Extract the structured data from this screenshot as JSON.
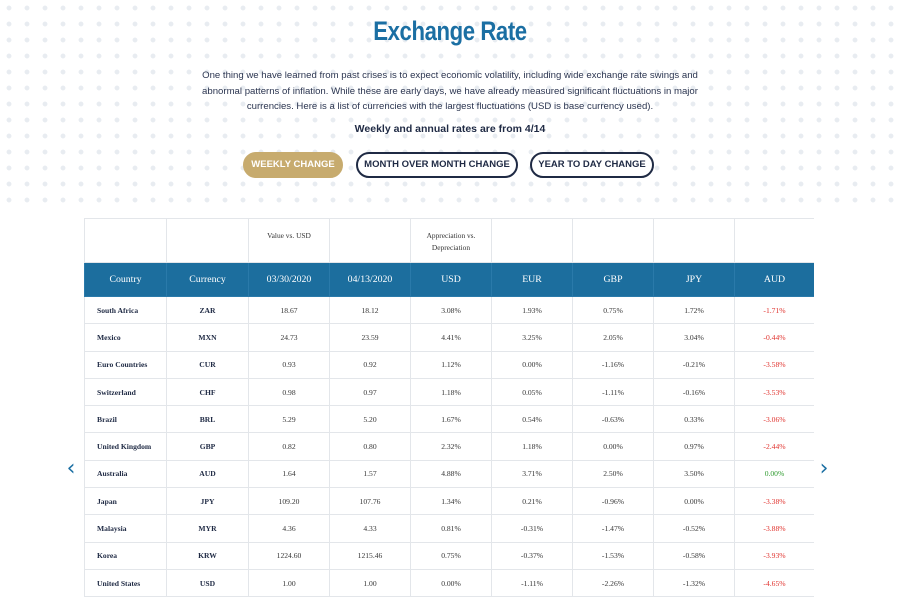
{
  "header": {
    "title": "Exchange Rate",
    "intro": "One thing we have learned from past crises is to expect economic volatility, including wide exchange rate swings and abnormal patterns of inflation. While these are early days, we have already measured significant fluctuations in major currencies. Here is a list of currencies with the largest fluctuations (USD is base currency used).",
    "note": "Weekly and annual rates are from 4/14"
  },
  "tabs": [
    {
      "label": "WEEKLY CHANGE",
      "active": true
    },
    {
      "label": "MONTH OVER MONTH CHANGE",
      "active": false
    },
    {
      "label": "YEAR TO DAY CHANGE",
      "active": false
    }
  ],
  "table": {
    "sub_headers": [
      "",
      "",
      "Value vs. USD",
      "",
      "Appreciation vs. Depreciation",
      "",
      "",
      "",
      ""
    ],
    "headers": [
      "Country",
      "Currency",
      "03/30/2020",
      "04/13/2020",
      "USD",
      "EUR",
      "GBP",
      "JPY",
      "AUD"
    ],
    "rows": [
      [
        "South Africa",
        "ZAR",
        "18.67",
        "18.12",
        "3.08%",
        "1.93%",
        "0.75%",
        "1.72%",
        "-1.71%"
      ],
      [
        "Mexico",
        "MXN",
        "24.73",
        "23.59",
        "4.41%",
        "3.25%",
        "2.05%",
        "3.04%",
        "-0.44%"
      ],
      [
        "Euro Countries",
        "CUR",
        "0.93",
        "0.92",
        "1.12%",
        "0.00%",
        "-1.16%",
        "-0.21%",
        "-3.58%"
      ],
      [
        "Switzerland",
        "CHF",
        "0.98",
        "0.97",
        "1.18%",
        "0.05%",
        "-1.11%",
        "-0.16%",
        "-3.53%"
      ],
      [
        "Brazil",
        "BRL",
        "5.29",
        "5.20",
        "1.67%",
        "0.54%",
        "-0.63%",
        "0.33%",
        "-3.06%"
      ],
      [
        "United Kingdom",
        "GBP",
        "0.82",
        "0.80",
        "2.32%",
        "1.18%",
        "0.00%",
        "0.97%",
        "-2.44%"
      ],
      [
        "Australia",
        "AUD",
        "1.64",
        "1.57",
        "4.88%",
        "3.71%",
        "2.50%",
        "3.50%",
        "0.00%"
      ],
      [
        "Japan",
        "JPY",
        "109.20",
        "107.76",
        "1.34%",
        "0.21%",
        "-0.96%",
        "0.00%",
        "-3.38%"
      ],
      [
        "Malaysia",
        "MYR",
        "4.36",
        "4.33",
        "0.81%",
        "-0.31%",
        "-1.47%",
        "-0.52%",
        "-3.88%"
      ],
      [
        "Korea",
        "KRW",
        "1224.60",
        "1215.46",
        "0.75%",
        "-0.37%",
        "-1.53%",
        "-0.58%",
        "-3.93%"
      ],
      [
        "United States",
        "USD",
        "1.00",
        "1.00",
        "0.00%",
        "-1.11%",
        "-2.26%",
        "-1.32%",
        "-4.65%"
      ]
    ],
    "aud_colors": {
      "negative": "#e0312c",
      "positive": "#2e9a2e"
    }
  },
  "nav": {
    "prev_glyph": "‹",
    "next_glyph": "›"
  },
  "colors": {
    "title": "#1b6fa3",
    "header_bg": "#1c6e9e",
    "active_tab": "#c7ab6e",
    "dark": "#1f2a44"
  }
}
